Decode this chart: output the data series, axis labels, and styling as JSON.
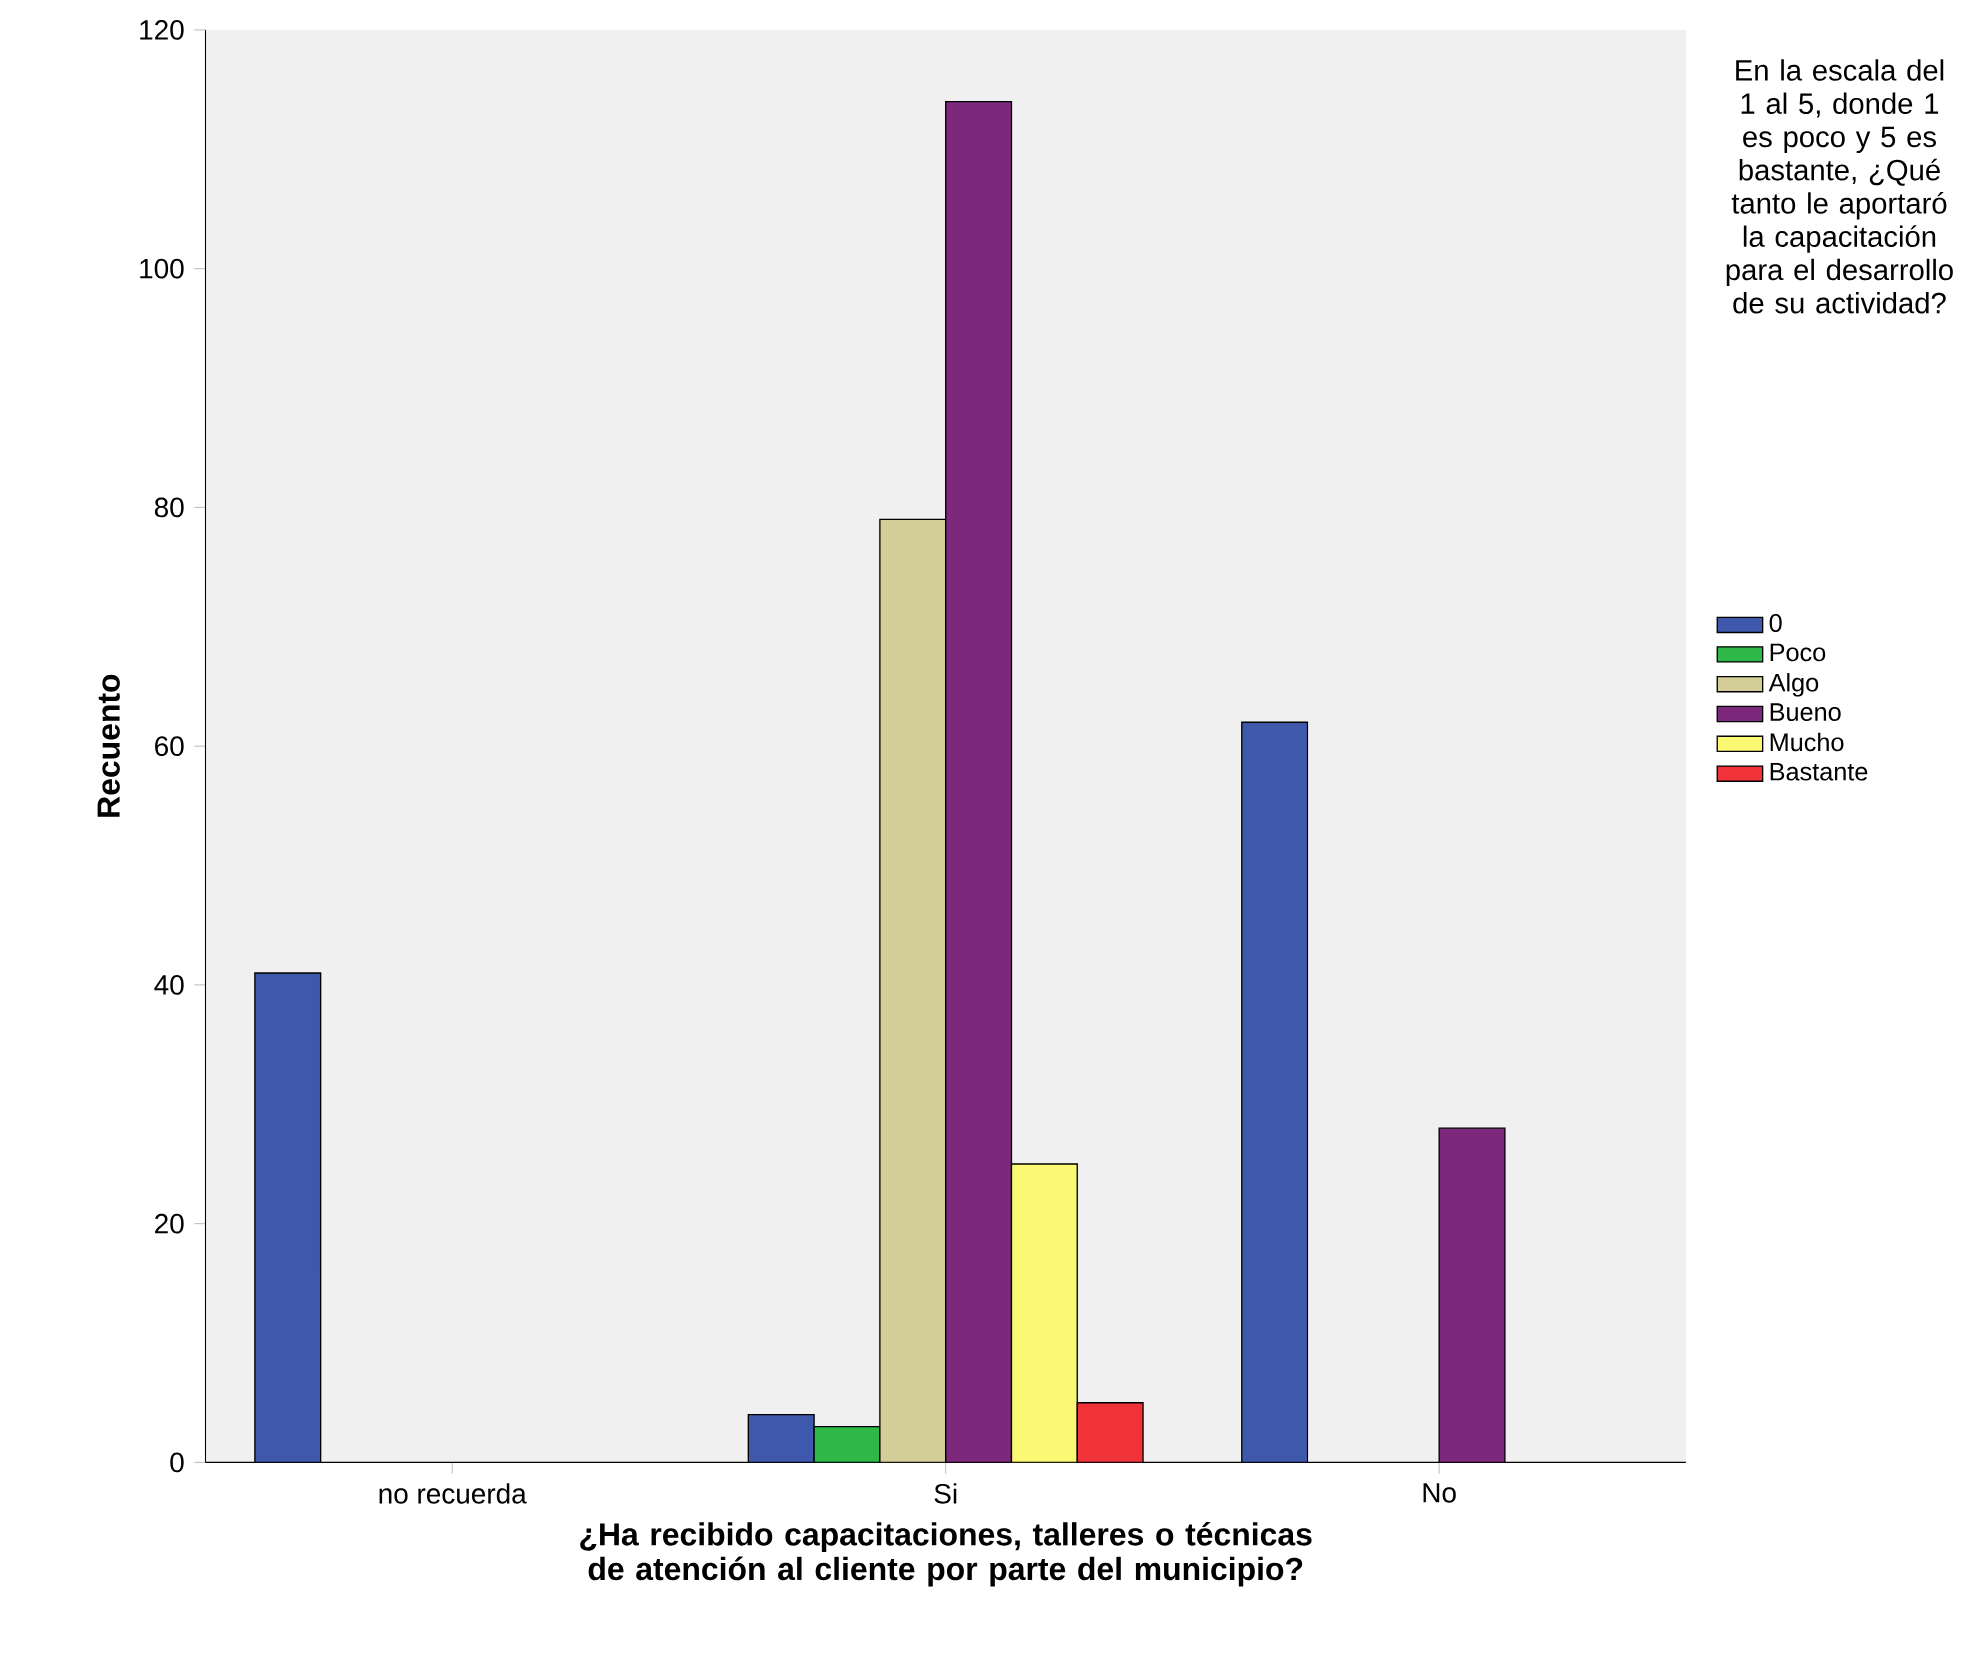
{
  "chart_data": {
    "type": "bar",
    "xlabel": "¿Ha recibido capacitaciones, talleres o técnicas de atención al cliente por parte del municipio?",
    "ylabel": "Recuento",
    "legend_title": "En la escala del 1 al 5, donde 1 es poco y 5 es bastante, ¿Qué tanto le aportaró la capacitación para el desarrollo de su actividad?",
    "categories": [
      "no recuerda",
      "Si",
      "No"
    ],
    "series": [
      {
        "name": "0",
        "color": "#3e58ac",
        "values": [
          41,
          4,
          62
        ]
      },
      {
        "name": "Poco",
        "color": "#2eb848",
        "values": [
          null,
          3,
          null
        ]
      },
      {
        "name": "Algo",
        "color": "#d3ce97",
        "values": [
          null,
          79,
          null
        ]
      },
      {
        "name": "Bueno",
        "color": "#7c287d",
        "values": [
          null,
          114,
          28
        ]
      },
      {
        "name": "Mucho",
        "color": "#fbf873",
        "values": [
          null,
          25,
          null
        ]
      },
      {
        "name": "Bastante",
        "color": "#ef3338",
        "values": [
          null,
          5,
          null
        ]
      }
    ],
    "ylim": [
      0,
      120
    ],
    "yticks": [
      0,
      20,
      40,
      60,
      80,
      100,
      120
    ],
    "legend": "right"
  }
}
